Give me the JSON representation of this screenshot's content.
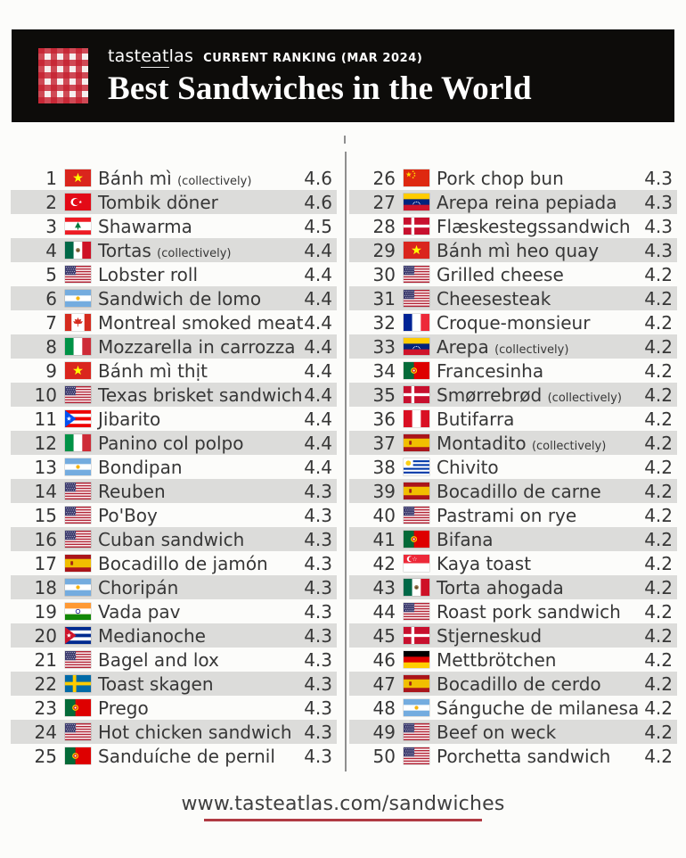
{
  "header": {
    "brand_pre": "tast",
    "brand_underlined": "eat",
    "brand_post": "las",
    "ranking_label": "CURRENT RANKING (MAR 2024)",
    "title": "Best Sandwiches in the World"
  },
  "footer": {
    "url": "www.tasteatlas.com/sandwiches"
  },
  "colors": {
    "accent_red": "#b03a42",
    "stripe_gray": "#dcdcda",
    "header_bg": "#0d0c0a",
    "text_dark": "#373737",
    "page_bg": "#fcfcfa"
  },
  "chart_data": {
    "type": "table",
    "title": "Best Sandwiches in the World",
    "subtitle": "tasteatlas CURRENT RANKING (MAR 2024)",
    "columns": [
      "rank",
      "country",
      "name",
      "qualifier",
      "rating"
    ],
    "rows": [
      {
        "rank": 1,
        "country": "Vietnam",
        "name": "Bánh mì",
        "qualifier": "(collectively)",
        "rating": 4.6
      },
      {
        "rank": 2,
        "country": "Turkey",
        "name": "Tombik döner",
        "qualifier": "",
        "rating": 4.6
      },
      {
        "rank": 3,
        "country": "Lebanon",
        "name": "Shawarma",
        "qualifier": "",
        "rating": 4.5
      },
      {
        "rank": 4,
        "country": "Mexico",
        "name": "Tortas",
        "qualifier": "(collectively)",
        "rating": 4.4
      },
      {
        "rank": 5,
        "country": "USA",
        "name": "Lobster roll",
        "qualifier": "",
        "rating": 4.4
      },
      {
        "rank": 6,
        "country": "Argentina",
        "name": "Sandwich de lomo",
        "qualifier": "",
        "rating": 4.4
      },
      {
        "rank": 7,
        "country": "Canada",
        "name": "Montreal smoked meat",
        "qualifier": "",
        "rating": 4.4
      },
      {
        "rank": 8,
        "country": "Italy",
        "name": "Mozzarella in carrozza",
        "qualifier": "",
        "rating": 4.4
      },
      {
        "rank": 9,
        "country": "Vietnam",
        "name": "Bánh mì thịt",
        "qualifier": "",
        "rating": 4.4
      },
      {
        "rank": 10,
        "country": "USA",
        "name": "Texas brisket sandwich",
        "qualifier": "",
        "rating": 4.4
      },
      {
        "rank": 11,
        "country": "Puerto Rico",
        "name": "Jibarito",
        "qualifier": "",
        "rating": 4.4
      },
      {
        "rank": 12,
        "country": "Italy",
        "name": "Panino col polpo",
        "qualifier": "",
        "rating": 4.4
      },
      {
        "rank": 13,
        "country": "Argentina",
        "name": "Bondipan",
        "qualifier": "",
        "rating": 4.4
      },
      {
        "rank": 14,
        "country": "USA",
        "name": "Reuben",
        "qualifier": "",
        "rating": 4.3
      },
      {
        "rank": 15,
        "country": "USA",
        "name": "Po'Boy",
        "qualifier": "",
        "rating": 4.3
      },
      {
        "rank": 16,
        "country": "USA",
        "name": "Cuban sandwich",
        "qualifier": "",
        "rating": 4.3
      },
      {
        "rank": 17,
        "country": "Spain",
        "name": "Bocadillo de jamón",
        "qualifier": "",
        "rating": 4.3
      },
      {
        "rank": 18,
        "country": "Argentina",
        "name": "Choripán",
        "qualifier": "",
        "rating": 4.3
      },
      {
        "rank": 19,
        "country": "India",
        "name": "Vada pav",
        "qualifier": "",
        "rating": 4.3
      },
      {
        "rank": 20,
        "country": "Cuba",
        "name": "Medianoche",
        "qualifier": "",
        "rating": 4.3
      },
      {
        "rank": 21,
        "country": "USA",
        "name": "Bagel and lox",
        "qualifier": "",
        "rating": 4.3
      },
      {
        "rank": 22,
        "country": "Sweden",
        "name": "Toast skagen",
        "qualifier": "",
        "rating": 4.3
      },
      {
        "rank": 23,
        "country": "Portugal",
        "name": "Prego",
        "qualifier": "",
        "rating": 4.3
      },
      {
        "rank": 24,
        "country": "USA",
        "name": "Hot chicken sandwich",
        "qualifier": "",
        "rating": 4.3
      },
      {
        "rank": 25,
        "country": "Portugal",
        "name": "Sanduíche de pernil",
        "qualifier": "",
        "rating": 4.3
      },
      {
        "rank": 26,
        "country": "China",
        "name": "Pork chop bun",
        "qualifier": "",
        "rating": 4.3
      },
      {
        "rank": 27,
        "country": "Venezuela",
        "name": "Arepa reina pepiada",
        "qualifier": "",
        "rating": 4.3
      },
      {
        "rank": 28,
        "country": "Denmark",
        "name": "Flæskestegssandwich",
        "qualifier": "",
        "rating": 4.3
      },
      {
        "rank": 29,
        "country": "Vietnam",
        "name": "Bánh mì heo quay",
        "qualifier": "",
        "rating": 4.3
      },
      {
        "rank": 30,
        "country": "USA",
        "name": "Grilled cheese",
        "qualifier": "",
        "rating": 4.2
      },
      {
        "rank": 31,
        "country": "USA",
        "name": "Cheesesteak",
        "qualifier": "",
        "rating": 4.2
      },
      {
        "rank": 32,
        "country": "France",
        "name": "Croque-monsieur",
        "qualifier": "",
        "rating": 4.2
      },
      {
        "rank": 33,
        "country": "Venezuela",
        "name": "Arepa",
        "qualifier": "(collectively)",
        "rating": 4.2
      },
      {
        "rank": 34,
        "country": "Portugal",
        "name": "Francesinha",
        "qualifier": "",
        "rating": 4.2
      },
      {
        "rank": 35,
        "country": "Denmark",
        "name": "Smørrebrød",
        "qualifier": "(collectively)",
        "rating": 4.2
      },
      {
        "rank": 36,
        "country": "Peru",
        "name": "Butifarra",
        "qualifier": "",
        "rating": 4.2
      },
      {
        "rank": 37,
        "country": "Spain",
        "name": "Montadito",
        "qualifier": "(collectively)",
        "rating": 4.2
      },
      {
        "rank": 38,
        "country": "Uruguay",
        "name": "Chivito",
        "qualifier": "",
        "rating": 4.2
      },
      {
        "rank": 39,
        "country": "Spain",
        "name": "Bocadillo de carne",
        "qualifier": "",
        "rating": 4.2
      },
      {
        "rank": 40,
        "country": "USA",
        "name": "Pastrami on rye",
        "qualifier": "",
        "rating": 4.2
      },
      {
        "rank": 41,
        "country": "Portugal",
        "name": "Bifana",
        "qualifier": "",
        "rating": 4.2
      },
      {
        "rank": 42,
        "country": "Singapore",
        "name": "Kaya toast",
        "qualifier": "",
        "rating": 4.2
      },
      {
        "rank": 43,
        "country": "Mexico",
        "name": "Torta ahogada",
        "qualifier": "",
        "rating": 4.2
      },
      {
        "rank": 44,
        "country": "USA",
        "name": "Roast pork sandwich",
        "qualifier": "",
        "rating": 4.2
      },
      {
        "rank": 45,
        "country": "Denmark",
        "name": "Stjerneskud",
        "qualifier": "",
        "rating": 4.2
      },
      {
        "rank": 46,
        "country": "Germany",
        "name": "Mettbrötchen",
        "qualifier": "",
        "rating": 4.2
      },
      {
        "rank": 47,
        "country": "Spain",
        "name": "Bocadillo de cerdo",
        "qualifier": "",
        "rating": 4.2
      },
      {
        "rank": 48,
        "country": "Argentina",
        "name": "Sánguche de milanesa",
        "qualifier": "",
        "rating": 4.2
      },
      {
        "rank": 49,
        "country": "USA",
        "name": "Beef on weck",
        "qualifier": "",
        "rating": 4.2
      },
      {
        "rank": 50,
        "country": "USA",
        "name": "Porchetta sandwich",
        "qualifier": "",
        "rating": 4.2
      }
    ]
  }
}
